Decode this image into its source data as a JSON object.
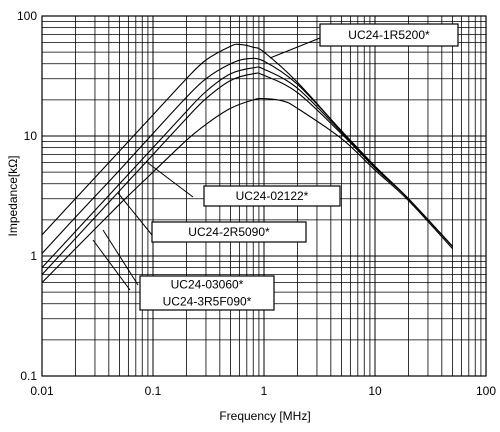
{
  "chart_data": {
    "type": "line",
    "xlabel": "Frequency [MHz]",
    "ylabel": "Impedance[kΩ]",
    "x_scale": "log",
    "y_scale": "log",
    "xlim": [
      0.01,
      100
    ],
    "ylim": [
      0.1,
      100
    ],
    "x_ticks": [
      "0.01",
      "0.1",
      "1",
      "10",
      "100"
    ],
    "y_ticks": [
      "0.1",
      "1",
      "10",
      "100"
    ],
    "grid": true,
    "series": [
      {
        "name": "UC24-1R5200*",
        "x": [
          0.01,
          0.02,
          0.05,
          0.1,
          0.2,
          0.3,
          0.5,
          0.6,
          0.8,
          1,
          2,
          5,
          10,
          20,
          50
        ],
        "y": [
          1.5,
          3.0,
          7.5,
          15,
          30,
          43,
          56,
          58,
          55,
          50,
          28,
          11,
          5.6,
          3.0,
          1.2
        ]
      },
      {
        "name": "UC24-02122*",
        "x": [
          0.01,
          0.02,
          0.05,
          0.1,
          0.2,
          0.3,
          0.5,
          0.7,
          1,
          2,
          5,
          10,
          20,
          50
        ],
        "y": [
          1.05,
          2.1,
          5.2,
          10.5,
          21,
          30,
          40,
          44,
          42,
          27,
          11,
          5.6,
          3.0,
          1.2
        ]
      },
      {
        "name": "UC24-2R5090*",
        "x": [
          0.01,
          0.02,
          0.05,
          0.1,
          0.2,
          0.3,
          0.5,
          0.8,
          1,
          2,
          5,
          10,
          20,
          50
        ],
        "y": [
          0.8,
          1.6,
          4.0,
          8.0,
          16,
          23.5,
          33,
          37,
          36,
          25,
          10.7,
          5.5,
          3.0,
          1.2
        ]
      },
      {
        "name": "UC24-03060*",
        "x": [
          0.01,
          0.02,
          0.05,
          0.1,
          0.2,
          0.3,
          0.5,
          0.8,
          1,
          2,
          5,
          10,
          20,
          50
        ],
        "y": [
          0.7,
          1.4,
          3.5,
          7.0,
          14,
          20.5,
          29,
          33,
          32,
          23,
          10.4,
          5.4,
          3.0,
          1.2
        ]
      },
      {
        "name": "UC24-3R5F090*",
        "x": [
          0.01,
          0.02,
          0.05,
          0.1,
          0.2,
          0.3,
          0.5,
          0.8,
          1,
          1.5,
          2,
          5,
          10,
          20,
          50
        ],
        "y": [
          0.6,
          1.15,
          2.7,
          5.0,
          9.2,
          12.5,
          17,
          20,
          20.5,
          19.5,
          17,
          9.5,
          5.2,
          2.9,
          1.15
        ]
      }
    ],
    "annotations": [
      {
        "label": "UC24-1R5200*",
        "series": [
          0
        ]
      },
      {
        "label": "UC24-02122*",
        "series": [
          1
        ]
      },
      {
        "label": "UC24-2R5090*",
        "series": [
          2
        ]
      },
      {
        "label": "UC24-03060*",
        "series": [
          3
        ]
      },
      {
        "label": "UC24-3R5F090*",
        "series": [
          4
        ]
      }
    ]
  }
}
